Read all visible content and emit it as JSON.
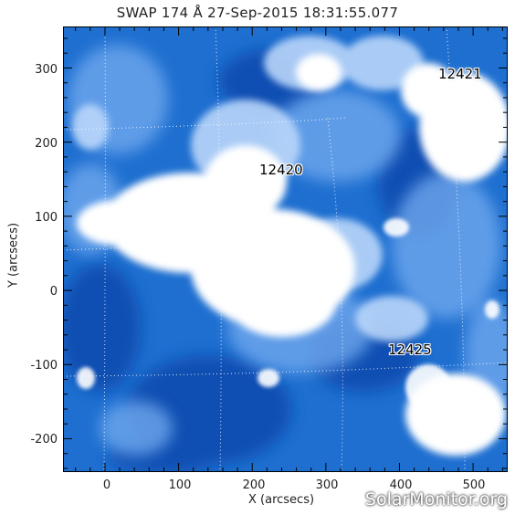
{
  "title": "SWAP 174 Å 27-Sep-2015 18:31:55.077",
  "axes": {
    "xlabel": "X (arcsecs)",
    "ylabel": "Y (arcsecs)",
    "xlim": [
      -57,
      547
    ],
    "ylim": [
      -245,
      356
    ],
    "xticks": [
      "0",
      "100",
      "200",
      "300",
      "400",
      "500"
    ],
    "yticks": [
      "300",
      "200",
      "100",
      "0",
      "-100",
      "-200"
    ]
  },
  "active_regions": [
    {
      "label": "12421"
    },
    {
      "label": "12420"
    },
    {
      "label": "12425"
    }
  ],
  "watermark": "SolarMonitor.org",
  "colors": {
    "background": "#1e6fd0",
    "bright": "#ffffff",
    "dark": "#0d3e9a"
  }
}
